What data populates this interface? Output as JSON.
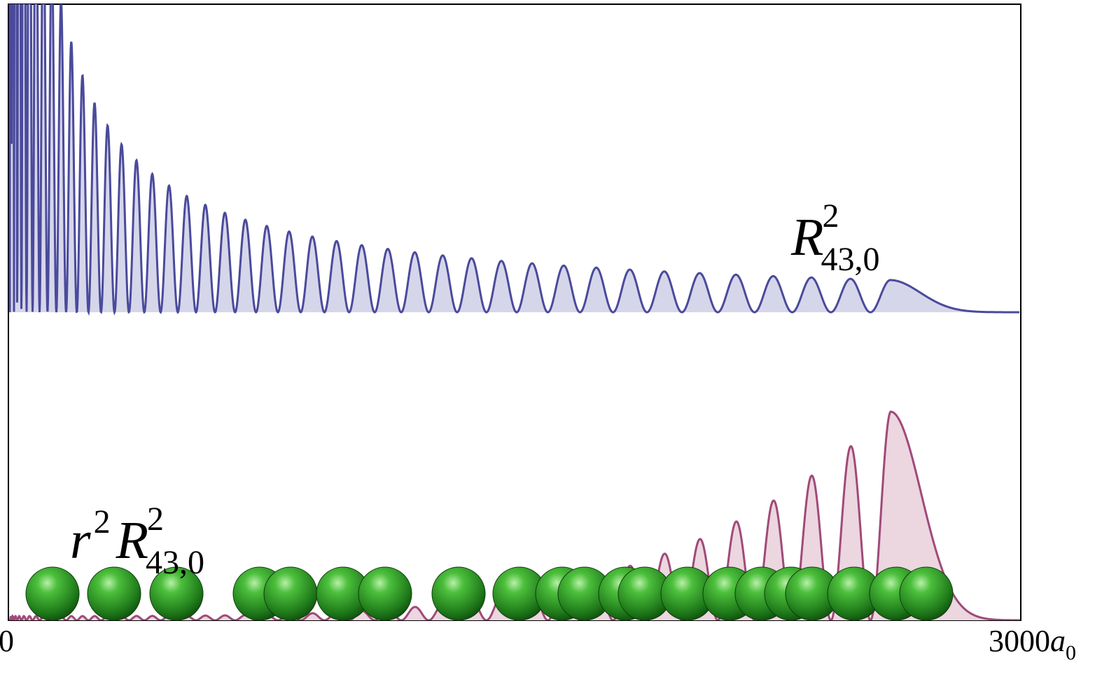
{
  "axis": {
    "start": "0",
    "end": "3000",
    "unit": "a",
    "unit_sub": "0"
  },
  "labels": [
    {
      "prefix": null,
      "prefix_sup": null,
      "base": "R",
      "sup": "2",
      "sub": "43,0"
    },
    {
      "prefix": "r",
      "prefix_sup": "2",
      "base": "R",
      "sup": "2",
      "sub": "43,0"
    }
  ]
}
